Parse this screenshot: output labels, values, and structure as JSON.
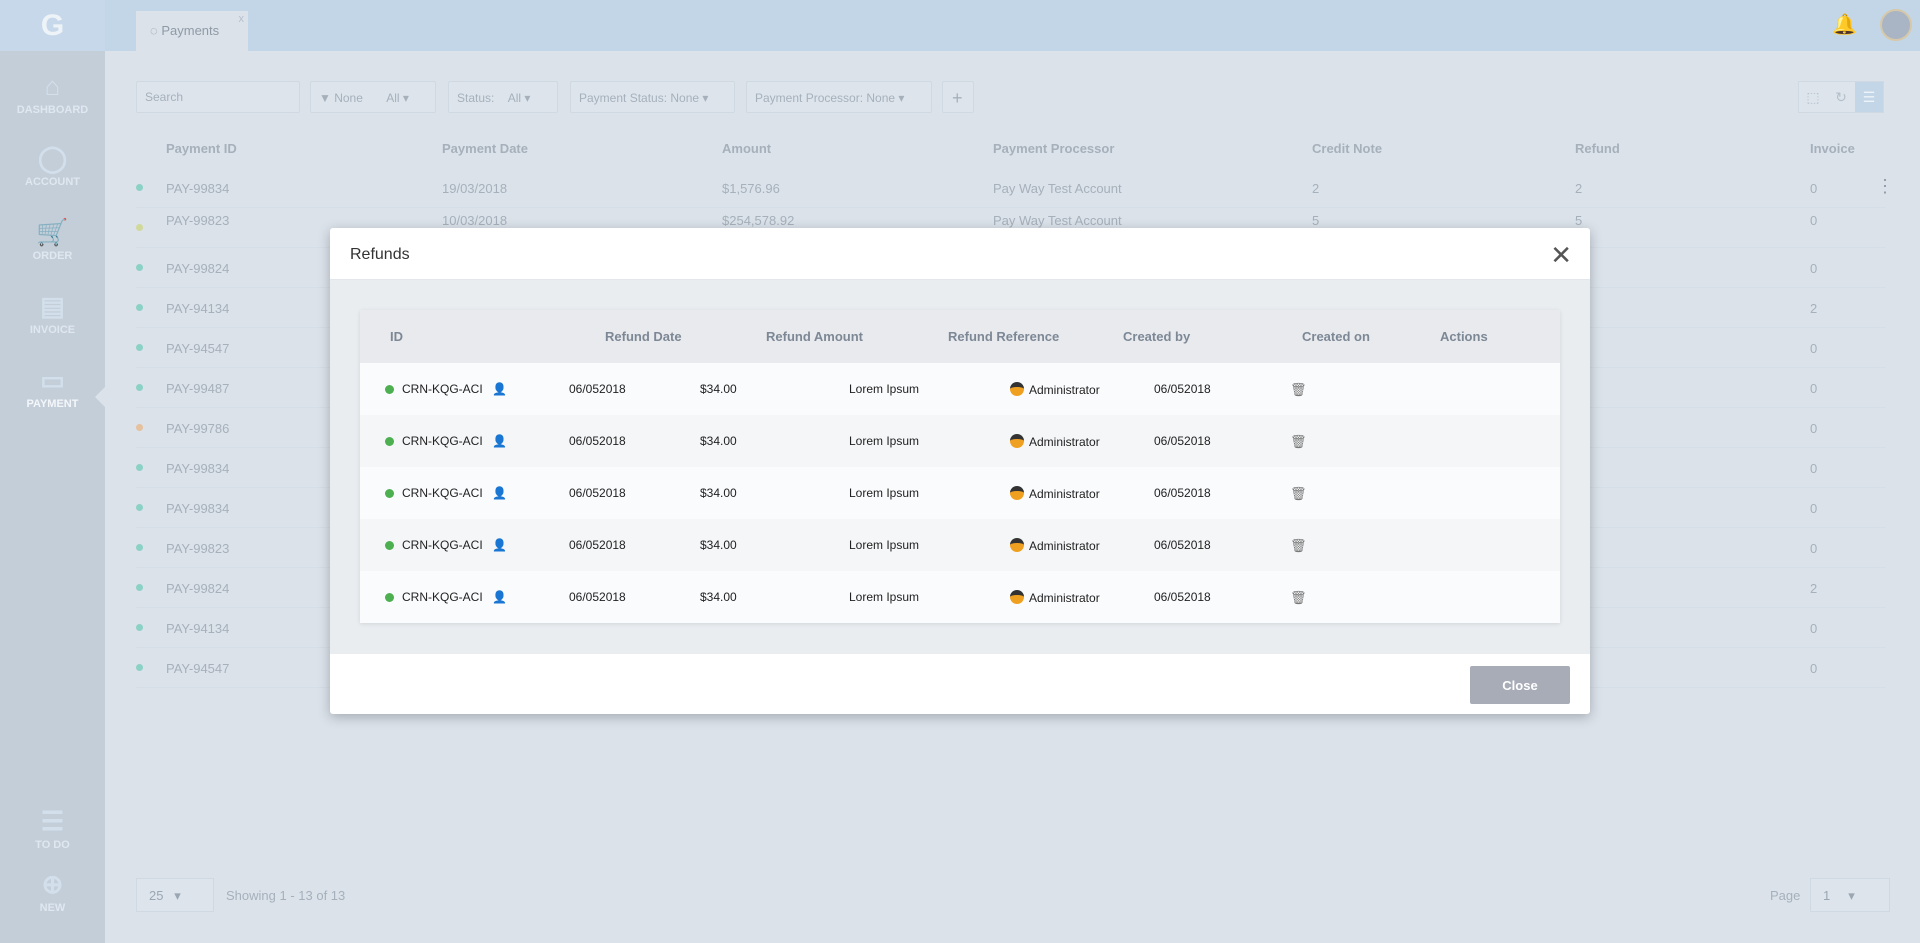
{
  "app": {
    "tab": "Payments",
    "tab_close": "x"
  },
  "sidebar": {
    "items": [
      {
        "label": "DASHBOARD",
        "icon": "home-icon"
      },
      {
        "label": "ACCOUNT",
        "icon": "user-icon"
      },
      {
        "label": "ORDER",
        "icon": "cart-icon"
      },
      {
        "label": "INVOICE",
        "icon": "document-icon"
      },
      {
        "label": "PAYMENT",
        "icon": "wallet-icon",
        "active": true
      }
    ],
    "bottom": [
      {
        "label": "TO DO",
        "icon": "menu-icon"
      },
      {
        "label": "NEW",
        "icon": "plus-circle-icon"
      }
    ]
  },
  "filters": {
    "search_placeholder": "Search",
    "type": {
      "label": "None",
      "value": "All"
    },
    "status": {
      "label": "Status:",
      "value": "All"
    },
    "payment_status": {
      "label": "Payment Status:",
      "value": "None"
    },
    "processor": {
      "label": "Payment Processor:",
      "value": "None"
    },
    "add": "+"
  },
  "table": {
    "headers": [
      "Payment ID",
      "Payment Date",
      "Amount",
      "Payment Processor",
      "Credit Note",
      "Refund",
      "Invoice"
    ],
    "rows": [
      {
        "id": "PAY-99834",
        "date": "19/03/2018",
        "amount": "$1,576.96",
        "processor": "Pay Way Test Account",
        "credit": "2",
        "refund": "2",
        "invoice": "0",
        "status": "#3cc0a0"
      },
      {
        "id": "PAY-99823",
        "date": "10/03/2018",
        "amount": "$254,578.92",
        "processor": "Pay Way Test Account",
        "credit": "5",
        "refund": "5",
        "invoice": "0",
        "status": "#c8d04a"
      },
      {
        "id": "PAY-99824",
        "invoice": "0",
        "status": "#3cc0a0"
      },
      {
        "id": "PAY-94134",
        "invoice": "2",
        "status": "#3cc0a0"
      },
      {
        "id": "PAY-94547",
        "invoice": "0",
        "status": "#3cc0a0"
      },
      {
        "id": "PAY-99487",
        "invoice": "0",
        "status": "#3cc0a0"
      },
      {
        "id": "PAY-99786",
        "invoice": "0",
        "status": "#f0a050"
      },
      {
        "id": "PAY-99834",
        "invoice": "0",
        "status": "#3cc0a0"
      },
      {
        "id": "PAY-99834",
        "invoice": "0",
        "status": "#3cc0a0"
      },
      {
        "id": "PAY-99823",
        "invoice": "0",
        "status": "#3cc0a0"
      },
      {
        "id": "PAY-99824",
        "invoice": "2",
        "status": "#3cc0a0"
      },
      {
        "id": "PAY-94134",
        "invoice": "0",
        "status": "#3cc0a0"
      },
      {
        "id": "PAY-94547",
        "invoice": "0",
        "status": "#3cc0a0"
      }
    ]
  },
  "pagination": {
    "page_size": "25",
    "showing": "Showing 1 - 13 of 13",
    "page_label": "Page",
    "page": "1"
  },
  "modal": {
    "title": "Refunds",
    "close_label": "Close",
    "headers": [
      "ID",
      "Refund Date",
      "Refund Amount",
      "Refund Reference",
      "Created by",
      "Created on",
      "Actions"
    ],
    "rows": [
      {
        "id": "CRN-KQG-ACI",
        "date": "06/052018",
        "amount": "$34.00",
        "reference": "Lorem Ipsum",
        "created_by": "Administrator",
        "created_on": "06/052018"
      },
      {
        "id": "CRN-KQG-ACI",
        "date": "06/052018",
        "amount": "$34.00",
        "reference": "Lorem Ipsum",
        "created_by": "Administrator",
        "created_on": "06/052018"
      },
      {
        "id": "CRN-KQG-ACI",
        "date": "06/052018",
        "amount": "$34.00",
        "reference": "Lorem Ipsum",
        "created_by": "Administrator",
        "created_on": "06/052018"
      },
      {
        "id": "CRN-KQG-ACI",
        "date": "06/052018",
        "amount": "$34.00",
        "reference": "Lorem Ipsum",
        "created_by": "Administrator",
        "created_on": "06/052018"
      },
      {
        "id": "CRN-KQG-ACI",
        "date": "06/052018",
        "amount": "$34.00",
        "reference": "Lorem Ipsum",
        "created_by": "Administrator",
        "created_on": "06/052018"
      }
    ],
    "status_color": "#4caf50"
  }
}
